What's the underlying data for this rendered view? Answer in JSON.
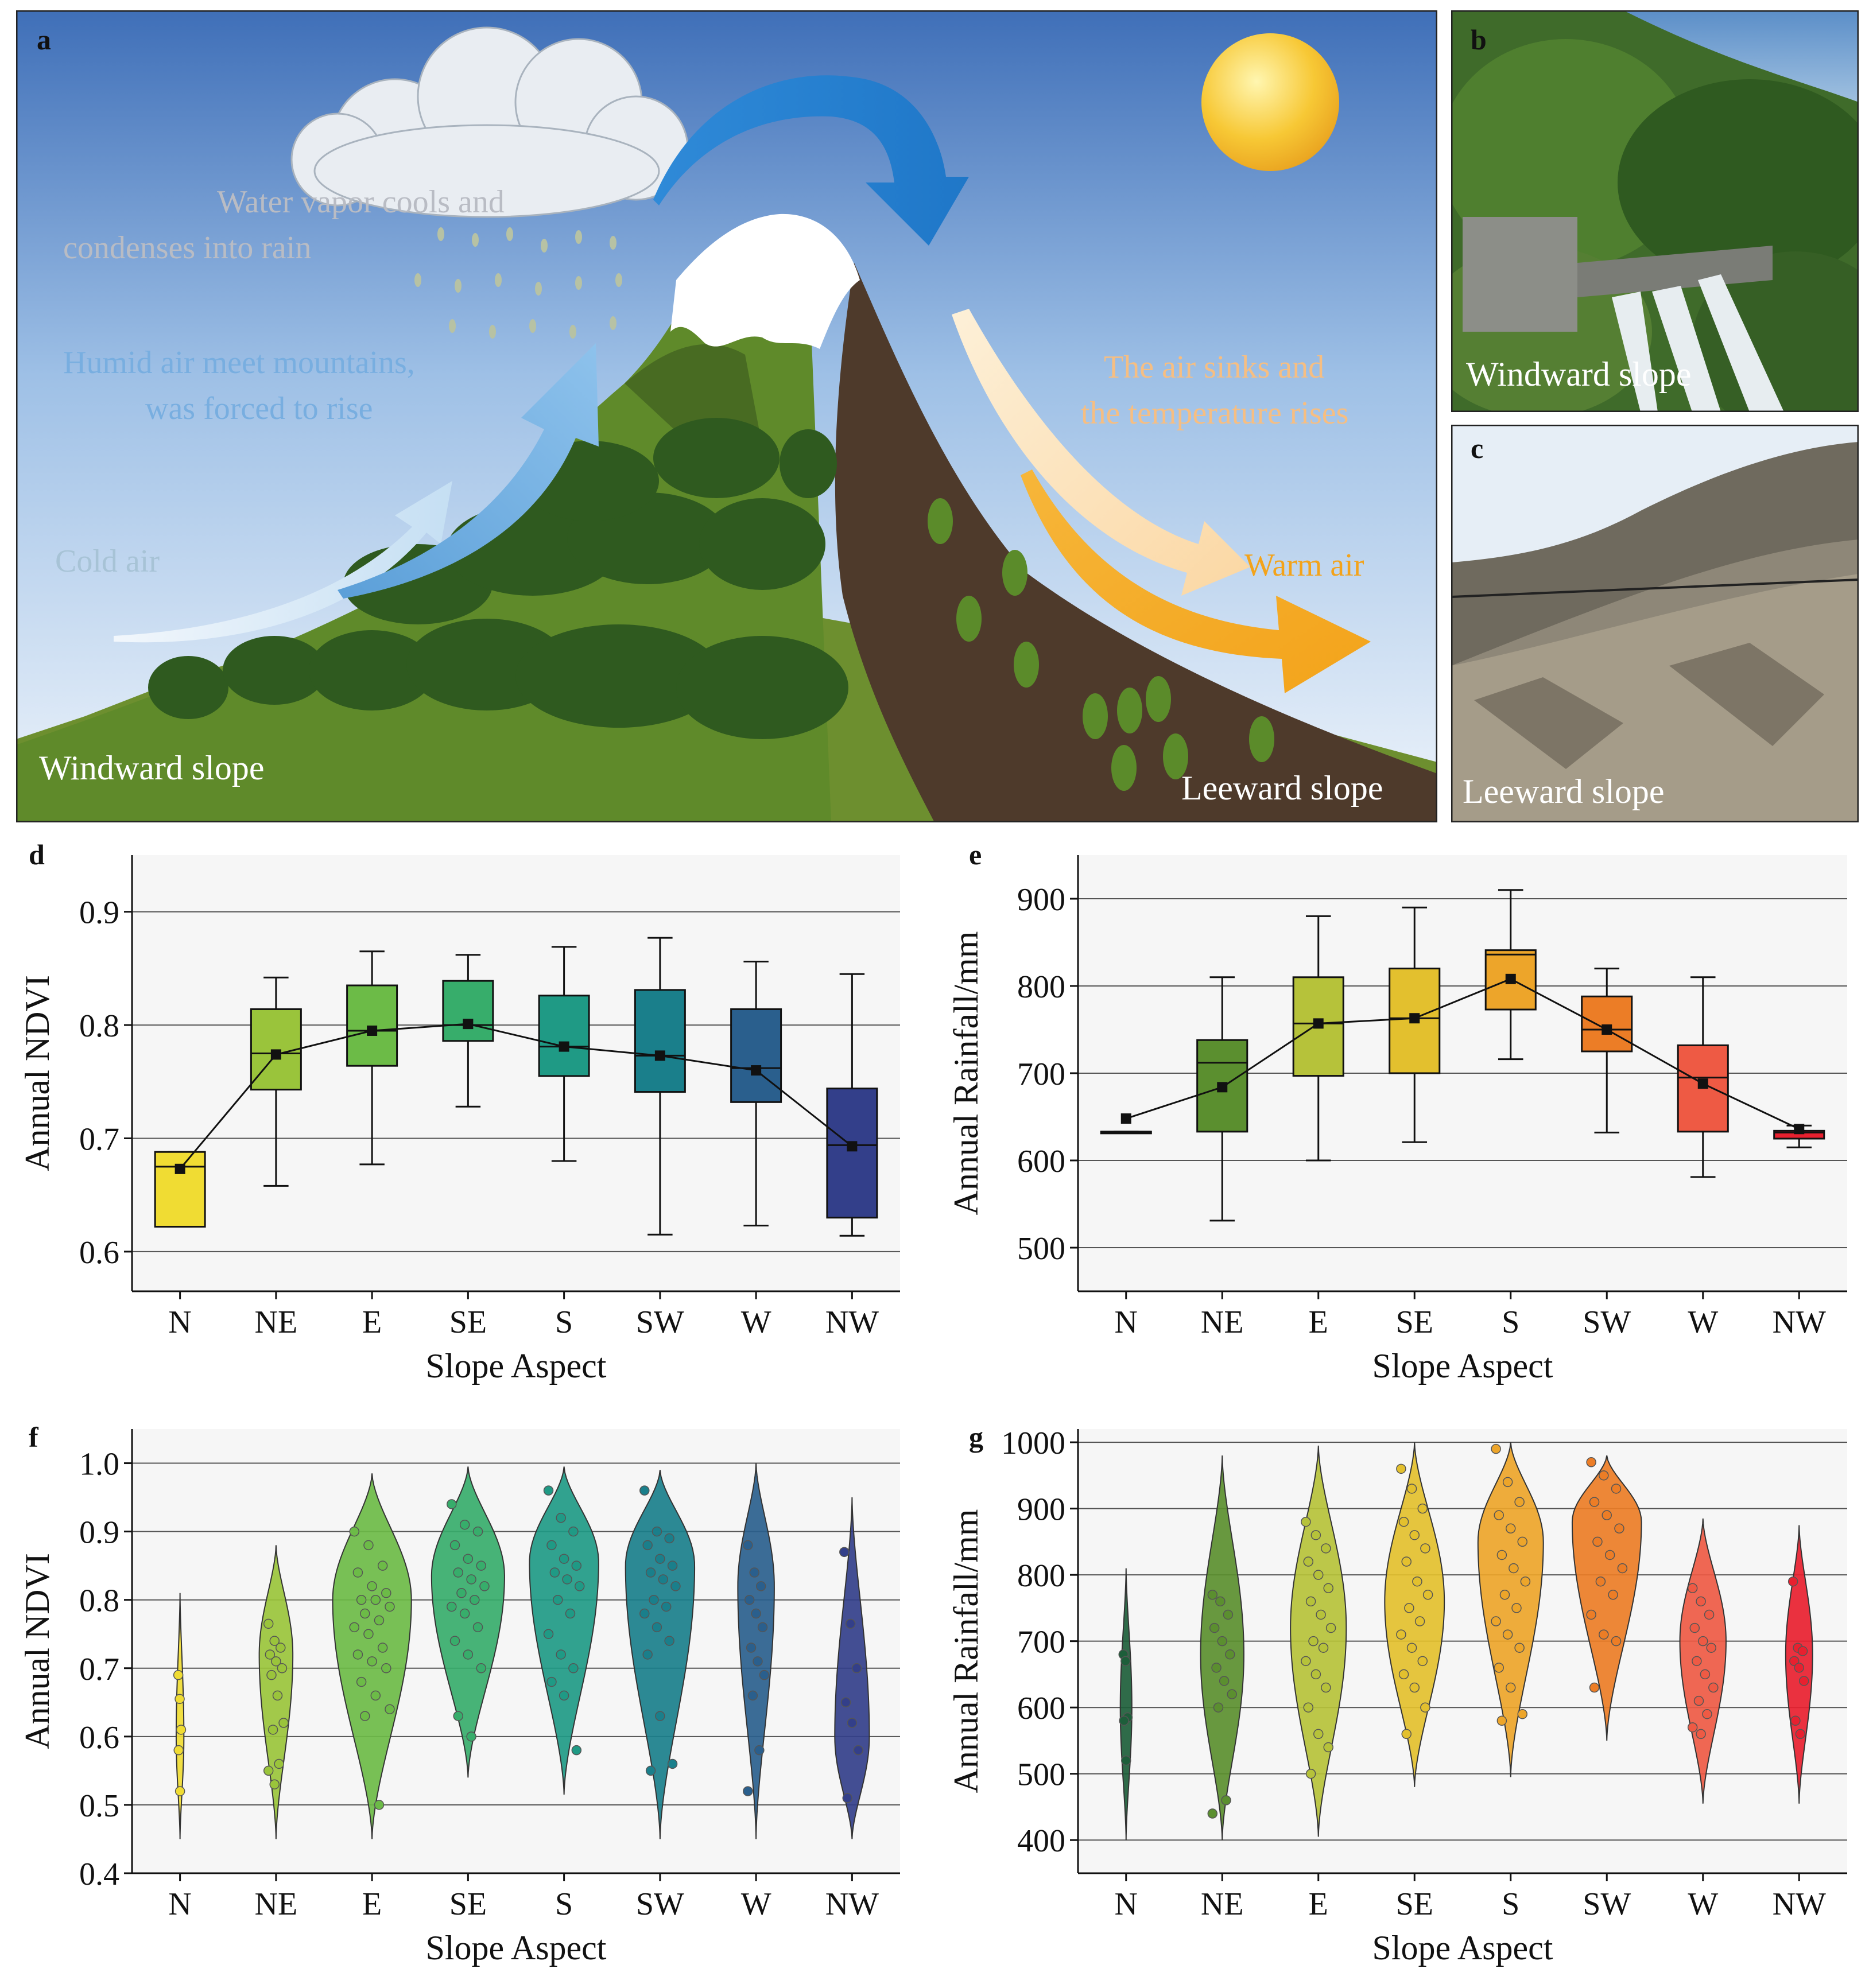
{
  "panels": {
    "a": "a",
    "b": "b",
    "c": "c",
    "d": "d",
    "e": "e",
    "f": "f",
    "g": "g"
  },
  "scene": {
    "rain_text_1": "Water vapor cools and",
    "rain_text_2": "condenses into rain",
    "humid_text_1": "Humid air meet mountains,",
    "humid_text_2": "was forced to rise",
    "cold_air": "Cold air",
    "sink_text_1": "The air sinks and",
    "sink_text_2": "the temperature rises",
    "warm_air": "Warm air",
    "windward_label": "Windward slope",
    "leeward_label": "Leeward slope"
  },
  "photos": {
    "b_caption": "Windward slope",
    "c_caption": "Leeward slope"
  },
  "colors": {
    "N": "#f0dc33",
    "NE": "#9ac43b",
    "E": "#6cbb47",
    "SE": "#37ad6b",
    "S": "#1f9a85",
    "SW": "#1a7f8b",
    "W": "#2a5f8d",
    "NW": "#333f8a",
    "rain_N": "#1d5e3a",
    "rain_NE": "#5b8f2f",
    "rain_E": "#b6c23a",
    "rain_SE": "#e3c02e",
    "rain_S": "#eda52a",
    "rain_SW": "#ec7d26",
    "rain_W": "#ee5a44",
    "rain_NW": "#e8202f"
  },
  "chart_data": [
    {
      "id": "d",
      "type": "box",
      "xlabel": "Slope Aspect",
      "ylabel": "Annual NDVI",
      "categories": [
        "N",
        "NE",
        "E",
        "SE",
        "S",
        "SW",
        "W",
        "NW"
      ],
      "ylim": [
        0.565,
        0.95
      ],
      "yticks": [
        0.6,
        0.7,
        0.8,
        0.9
      ],
      "ytick_labels": [
        "0.6",
        "0.7",
        "0.8",
        "0.9"
      ],
      "boxes": [
        {
          "min": 0.622,
          "q1": 0.622,
          "median": 0.675,
          "q3": 0.688,
          "max": 0.688,
          "mean": 0.673
        },
        {
          "min": 0.658,
          "q1": 0.743,
          "median": 0.775,
          "q3": 0.814,
          "max": 0.842,
          "mean": 0.774
        },
        {
          "min": 0.677,
          "q1": 0.764,
          "median": 0.795,
          "q3": 0.835,
          "max": 0.865,
          "mean": 0.795
        },
        {
          "min": 0.728,
          "q1": 0.786,
          "median": 0.8,
          "q3": 0.839,
          "max": 0.862,
          "mean": 0.801
        },
        {
          "min": 0.68,
          "q1": 0.755,
          "median": 0.781,
          "q3": 0.826,
          "max": 0.869,
          "mean": 0.781
        },
        {
          "min": 0.615,
          "q1": 0.741,
          "median": 0.773,
          "q3": 0.831,
          "max": 0.877,
          "mean": 0.773
        },
        {
          "min": 0.623,
          "q1": 0.732,
          "median": 0.762,
          "q3": 0.814,
          "max": 0.856,
          "mean": 0.76
        },
        {
          "min": 0.614,
          "q1": 0.63,
          "median": 0.694,
          "q3": 0.744,
          "max": 0.845,
          "mean": 0.693
        }
      ]
    },
    {
      "id": "e",
      "type": "box",
      "xlabel": "Slope Aspect",
      "ylabel": "Annual Rainfall/mm",
      "categories": [
        "N",
        "NE",
        "E",
        "SE",
        "S",
        "SW",
        "W",
        "NW"
      ],
      "ylim": [
        450,
        950
      ],
      "yticks": [
        500,
        600,
        700,
        800,
        900
      ],
      "ytick_labels": [
        "500",
        "600",
        "700",
        "800",
        "900"
      ],
      "boxes": [
        {
          "min": 633,
          "q1": 633,
          "median": 633,
          "q3": 633,
          "max": 633,
          "mean": 648
        },
        {
          "min": 531,
          "q1": 633,
          "median": 712,
          "q3": 738,
          "max": 810,
          "mean": 684
        },
        {
          "min": 600,
          "q1": 697,
          "median": 757,
          "q3": 810,
          "max": 880,
          "mean": 757
        },
        {
          "min": 621,
          "q1": 700,
          "median": 763,
          "q3": 820,
          "max": 890,
          "mean": 763
        },
        {
          "min": 716,
          "q1": 773,
          "median": 836,
          "q3": 841,
          "max": 910,
          "mean": 808
        },
        {
          "min": 632,
          "q1": 725,
          "median": 750,
          "q3": 788,
          "max": 820,
          "mean": 750
        },
        {
          "min": 581,
          "q1": 633,
          "median": 695,
          "q3": 732,
          "max": 810,
          "mean": 688
        },
        {
          "min": 615,
          "q1": 625,
          "median": 632,
          "q3": 634,
          "max": 640,
          "mean": 636
        }
      ]
    },
    {
      "id": "f",
      "type": "violin",
      "xlabel": "Slope Aspect",
      "ylabel": "Annual NDVI",
      "categories": [
        "N",
        "NE",
        "E",
        "SE",
        "S",
        "SW",
        "W",
        "NW"
      ],
      "ylim": [
        0.4,
        1.05
      ],
      "yticks": [
        0.4,
        0.5,
        0.6,
        0.7,
        0.8,
        0.9,
        1.0
      ],
      "ytick_labels": [
        "0.4",
        "0.5",
        "0.6",
        "0.7",
        "0.8",
        "0.9",
        "1.0"
      ],
      "violins": [
        {
          "min": 0.45,
          "max": 0.81,
          "peak": 0.6,
          "width": 0.08,
          "points": [
            0.69,
            0.655,
            0.61,
            0.58,
            0.52
          ]
        },
        {
          "min": 0.45,
          "max": 0.88,
          "peak": 0.72,
          "width": 0.35,
          "points": [
            0.765,
            0.74,
            0.73,
            0.72,
            0.71,
            0.7,
            0.69,
            0.66,
            0.62,
            0.61,
            0.56,
            0.55,
            0.53
          ]
        },
        {
          "min": 0.45,
          "max": 0.985,
          "peak": 0.8,
          "width": 0.82,
          "points": [
            0.9,
            0.88,
            0.85,
            0.84,
            0.82,
            0.81,
            0.8,
            0.8,
            0.79,
            0.78,
            0.77,
            0.76,
            0.75,
            0.73,
            0.72,
            0.71,
            0.7,
            0.68,
            0.66,
            0.64,
            0.63,
            0.5
          ]
        },
        {
          "min": 0.54,
          "max": 0.995,
          "peak": 0.835,
          "width": 0.76,
          "points": [
            0.94,
            0.91,
            0.9,
            0.88,
            0.86,
            0.85,
            0.84,
            0.83,
            0.82,
            0.81,
            0.8,
            0.79,
            0.78,
            0.76,
            0.74,
            0.72,
            0.7,
            0.63,
            0.6
          ]
        },
        {
          "min": 0.515,
          "max": 0.995,
          "peak": 0.855,
          "width": 0.72,
          "points": [
            0.96,
            0.92,
            0.9,
            0.88,
            0.86,
            0.85,
            0.84,
            0.83,
            0.82,
            0.8,
            0.78,
            0.75,
            0.72,
            0.7,
            0.68,
            0.66,
            0.58
          ]
        },
        {
          "min": 0.45,
          "max": 0.99,
          "peak": 0.85,
          "width": 0.72,
          "points": [
            0.96,
            0.9,
            0.89,
            0.88,
            0.86,
            0.85,
            0.84,
            0.83,
            0.82,
            0.8,
            0.79,
            0.78,
            0.76,
            0.74,
            0.72,
            0.63,
            0.56,
            0.55
          ]
        },
        {
          "min": 0.45,
          "max": 1.0,
          "peak": 0.82,
          "width": 0.38,
          "points": [
            0.88,
            0.84,
            0.82,
            0.8,
            0.78,
            0.76,
            0.73,
            0.71,
            0.69,
            0.66,
            0.58,
            0.52
          ]
        },
        {
          "min": 0.45,
          "max": 0.95,
          "peak": 0.6,
          "width": 0.36,
          "points": [
            0.87,
            0.765,
            0.7,
            0.65,
            0.62,
            0.58,
            0.51
          ]
        }
      ]
    },
    {
      "id": "g",
      "type": "violin",
      "xlabel": "Slope Aspect",
      "ylabel": "Annual Rainfall/mm",
      "categories": [
        "N",
        "NE",
        "E",
        "SE",
        "S",
        "SW",
        "W",
        "NW"
      ],
      "ylim": [
        350,
        1020
      ],
      "yticks": [
        400,
        500,
        600,
        700,
        800,
        900,
        1000
      ],
      "ytick_labels": [
        "400",
        "500",
        "600",
        "700",
        "800",
        "900",
        "1000"
      ],
      "violins": [
        {
          "min": 400,
          "max": 810,
          "peak": 600,
          "width": 0.12,
          "points": [
            680,
            670,
            585,
            580,
            520
          ]
        },
        {
          "min": 400,
          "max": 980,
          "peak": 680,
          "width": 0.45,
          "points": [
            770,
            760,
            740,
            720,
            700,
            680,
            660,
            640,
            620,
            600,
            460,
            440
          ]
        },
        {
          "min": 405,
          "max": 995,
          "peak": 720,
          "width": 0.58,
          "points": [
            880,
            860,
            840,
            820,
            800,
            780,
            760,
            740,
            720,
            700,
            690,
            670,
            650,
            630,
            600,
            560,
            540,
            500
          ]
        },
        {
          "min": 480,
          "max": 1000,
          "peak": 760,
          "width": 0.62,
          "points": [
            960,
            930,
            900,
            880,
            860,
            840,
            820,
            790,
            770,
            750,
            730,
            710,
            690,
            670,
            650,
            630,
            600,
            560
          ]
        },
        {
          "min": 495,
          "max": 1000,
          "peak": 850,
          "width": 0.68,
          "points": [
            990,
            940,
            910,
            890,
            870,
            850,
            830,
            810,
            790,
            770,
            750,
            730,
            710,
            690,
            660,
            630,
            590,
            580
          ]
        },
        {
          "min": 550,
          "max": 980,
          "peak": 880,
          "width": 0.72,
          "points": [
            970,
            950,
            930,
            910,
            890,
            870,
            850,
            830,
            810,
            790,
            770,
            740,
            710,
            700,
            630
          ]
        },
        {
          "min": 455,
          "max": 885,
          "peak": 700,
          "width": 0.48,
          "points": [
            780,
            760,
            740,
            720,
            700,
            690,
            670,
            650,
            630,
            610,
            590,
            570,
            560
          ]
        },
        {
          "min": 455,
          "max": 875,
          "peak": 680,
          "width": 0.28,
          "points": [
            790,
            690,
            685,
            670,
            660,
            640,
            580,
            560
          ]
        }
      ]
    }
  ]
}
